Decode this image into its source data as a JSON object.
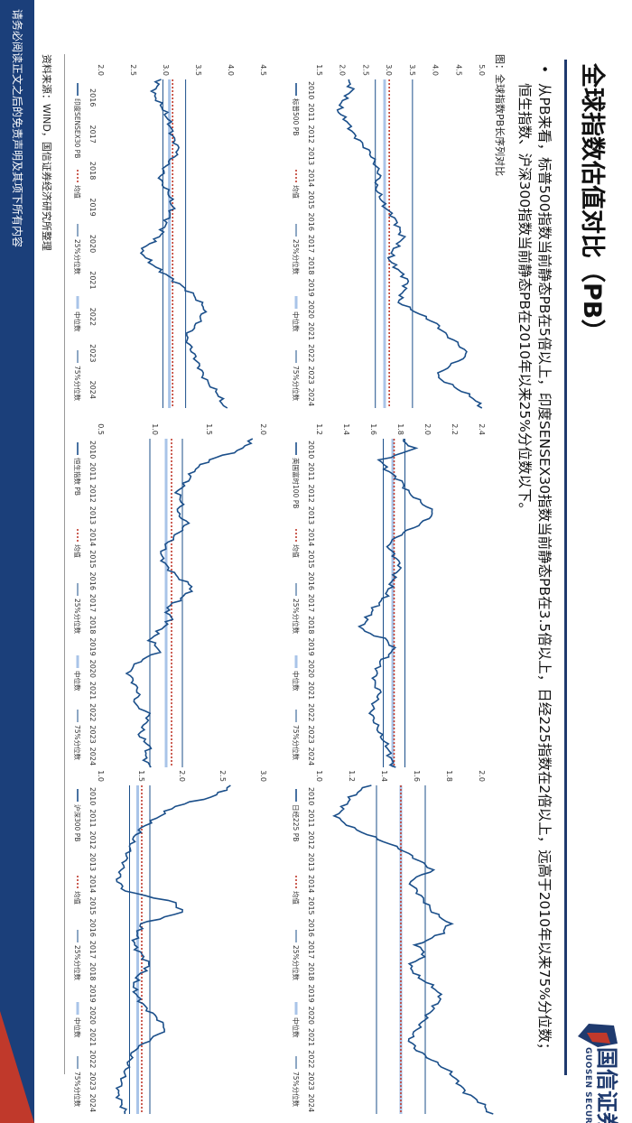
{
  "slide": {
    "title": "全球指数估值对比（PB）",
    "bullet": "从PB来看，标普500指数当前静态PB在5倍以上，印度SENSEX30指数当前静态PB在3.5倍以上，日经225指数在2倍以上，远高于2010年以来75%分位数；恒生指数、沪深300指数当前静态PB在2010年以来25%分位数以下。",
    "figure_label": "图：全球指数PB长序列对比",
    "source": "资料来源：WIND，国信证券经济研究所整理",
    "footer": "请务必阅读正文之后的免责声明及其项下所有内容",
    "logo_cn": "国信证券",
    "logo_en": "GUOSEN SECURITIES",
    "colors": {
      "series": "#1b4f8a",
      "mean": "#c0392b",
      "q25": "#1b4f8a",
      "median": "#a9c4e8",
      "q75": "#1b4f8a",
      "brand": "#1f3a6e"
    }
  },
  "chart_data": [
    {
      "type": "line",
      "series_name": "标普500 PB",
      "x_ticks": [
        "2010",
        "2011",
        "2012",
        "2013",
        "2014",
        "2015",
        "2016",
        "2017",
        "2018",
        "2019",
        "2020",
        "2021",
        "2022",
        "2023",
        "2024"
      ],
      "ylim": [
        1.5,
        5.0
      ],
      "y_ticks": [
        "1.5",
        "2.0",
        "2.5",
        "3.0",
        "3.5",
        "4.0",
        "4.5",
        "5.0"
      ],
      "mean": 3.0,
      "q25": 2.7,
      "median": 2.9,
      "q75": 3.5,
      "values": [
        2.1,
        2.2,
        2.0,
        1.9,
        2.1,
        2.2,
        2.4,
        2.6,
        2.7,
        2.8,
        2.7,
        2.8,
        2.9,
        3.1,
        3.2,
        3.3,
        3.1,
        3.0,
        3.2,
        3.4,
        3.3,
        3.2,
        3.6,
        4.0,
        4.2,
        4.5,
        4.7,
        4.3,
        4.0,
        4.4,
        4.8,
        5.0
      ],
      "legend": [
        "标普500 PB",
        "均值",
        "25%分位数",
        "中位数",
        "75%分位数"
      ]
    },
    {
      "type": "line",
      "series_name": "英国富时100 PB",
      "x_ticks": [
        "2010",
        "2011",
        "2012",
        "2013",
        "2014",
        "2015",
        "2016",
        "2017",
        "2018",
        "2019",
        "2020",
        "2021",
        "2022",
        "2023",
        "2024"
      ],
      "ylim": [
        1.2,
        2.4
      ],
      "y_ticks": [
        "1.2",
        "1.4",
        "1.6",
        "1.8",
        "2.0",
        "2.2",
        "2.4"
      ],
      "mean": 1.75,
      "q25": 1.67,
      "median": 1.74,
      "q75": 1.83,
      "values": [
        1.8,
        1.9,
        1.65,
        1.7,
        1.8,
        1.85,
        1.95,
        2.05,
        1.95,
        1.8,
        1.7,
        1.75,
        1.8,
        1.75,
        1.72,
        1.68,
        1.6,
        1.55,
        1.5,
        1.7,
        1.75,
        1.65,
        1.62,
        1.6,
        1.65,
        1.6,
        1.58,
        1.62,
        1.65,
        1.7,
        1.72,
        1.75
      ],
      "legend": [
        "英国富时100 PB",
        "均值",
        "25%分位数",
        "中位数",
        "75%分位数"
      ]
    },
    {
      "type": "line",
      "series_name": "日经225 PB",
      "x_ticks": [
        "2010",
        "2011",
        "2012",
        "2013",
        "2014",
        "2015",
        "2016",
        "2017",
        "2018",
        "2019",
        "2020",
        "2021",
        "2022",
        "2023",
        "2024"
      ],
      "ylim": [
        1.0,
        2.0
      ],
      "y_ticks": [
        "1.0",
        "1.2",
        "1.4",
        "1.6",
        "1.8",
        "2.0"
      ],
      "mean": 1.5,
      "q25": 1.35,
      "median": 1.5,
      "q75": 1.65,
      "values": [
        1.3,
        1.2,
        1.15,
        1.1,
        1.2,
        1.35,
        1.5,
        1.6,
        1.7,
        1.55,
        1.6,
        1.65,
        1.7,
        1.8,
        1.75,
        1.6,
        1.65,
        1.55,
        1.6,
        1.7,
        1.75,
        1.7,
        1.65,
        1.6,
        1.55,
        1.6,
        1.7,
        1.8,
        1.85,
        1.9,
        2.0,
        2.05
      ],
      "legend": [
        "日经225 PB",
        "均值",
        "25%分位数",
        "中位数",
        "75%分位数"
      ]
    },
    {
      "type": "line",
      "series_name": "印度SENSEX30 PB",
      "x_ticks": [
        "2016",
        "2017",
        "2018",
        "2019",
        "2020",
        "2021",
        "2022",
        "2023",
        "2024"
      ],
      "ylim": [
        2.0,
        4.5
      ],
      "y_ticks": [
        "2.0",
        "2.5",
        "3.0",
        "3.5",
        "4.0",
        "4.5"
      ],
      "mean": 3.1,
      "q25": 2.95,
      "median": 3.05,
      "q75": 3.3,
      "values": [
        2.9,
        2.8,
        2.95,
        3.05,
        3.1,
        3.2,
        3.0,
        2.9,
        3.05,
        3.1,
        3.0,
        2.9,
        2.6,
        2.8,
        3.1,
        3.4,
        3.6,
        3.5,
        3.3,
        3.4,
        3.5,
        3.6,
        3.8,
        3.9
      ],
      "legend": [
        "印度SENSEX30 PB",
        "均值",
        "25%分位数",
        "中位数",
        "75%分位数"
      ]
    },
    {
      "type": "line",
      "series_name": "恒生指数 PB",
      "x_ticks": [
        "2010",
        "2011",
        "2012",
        "2013",
        "2014",
        "2015",
        "2016",
        "2017",
        "2018",
        "2019",
        "2020",
        "2021",
        "2022",
        "2023",
        "2024"
      ],
      "ylim": [
        0.5,
        2.0
      ],
      "y_ticks": [
        "0.5",
        "1.0",
        "1.5",
        "2.0"
      ],
      "mean": 1.15,
      "q25": 0.95,
      "median": 1.1,
      "q75": 1.25,
      "values": [
        1.9,
        1.8,
        1.5,
        1.35,
        1.3,
        1.2,
        1.25,
        1.2,
        1.3,
        1.2,
        1.1,
        1.05,
        1.1,
        1.2,
        1.35,
        1.25,
        1.1,
        1.15,
        1.05,
        0.95,
        1.05,
        0.85,
        0.75,
        0.8,
        0.85,
        0.8,
        0.95,
        0.9,
        0.85,
        0.95,
        0.9,
        0.95
      ],
      "legend": [
        "恒生指数 PB",
        "均值",
        "25%分位数",
        "中位数",
        "75%分位数"
      ]
    },
    {
      "type": "line",
      "series_name": "沪深300 PB",
      "x_ticks": [
        "2010",
        "2011",
        "2012",
        "2013",
        "2014",
        "2015",
        "2016",
        "2017",
        "2018",
        "2019",
        "2020",
        "2021",
        "2022",
        "2023",
        "2024"
      ],
      "ylim": [
        1.0,
        3.0
      ],
      "y_ticks": [
        "1.0",
        "1.5",
        "2.0",
        "2.5",
        "3.0"
      ],
      "mean": 1.5,
      "q25": 1.35,
      "median": 1.45,
      "q75": 1.6,
      "values": [
        2.6,
        2.4,
        1.9,
        1.7,
        1.5,
        1.4,
        1.35,
        1.3,
        1.25,
        1.2,
        1.3,
        1.9,
        2.0,
        1.5,
        1.45,
        1.4,
        1.5,
        1.6,
        1.45,
        1.4,
        1.45,
        1.55,
        1.7,
        1.8,
        1.6,
        1.4,
        1.35,
        1.3,
        1.25,
        1.2,
        1.25,
        1.3
      ],
      "legend": [
        "沪深300 PB",
        "均值",
        "25%分位数",
        "中位数",
        "75%分位数"
      ]
    }
  ]
}
